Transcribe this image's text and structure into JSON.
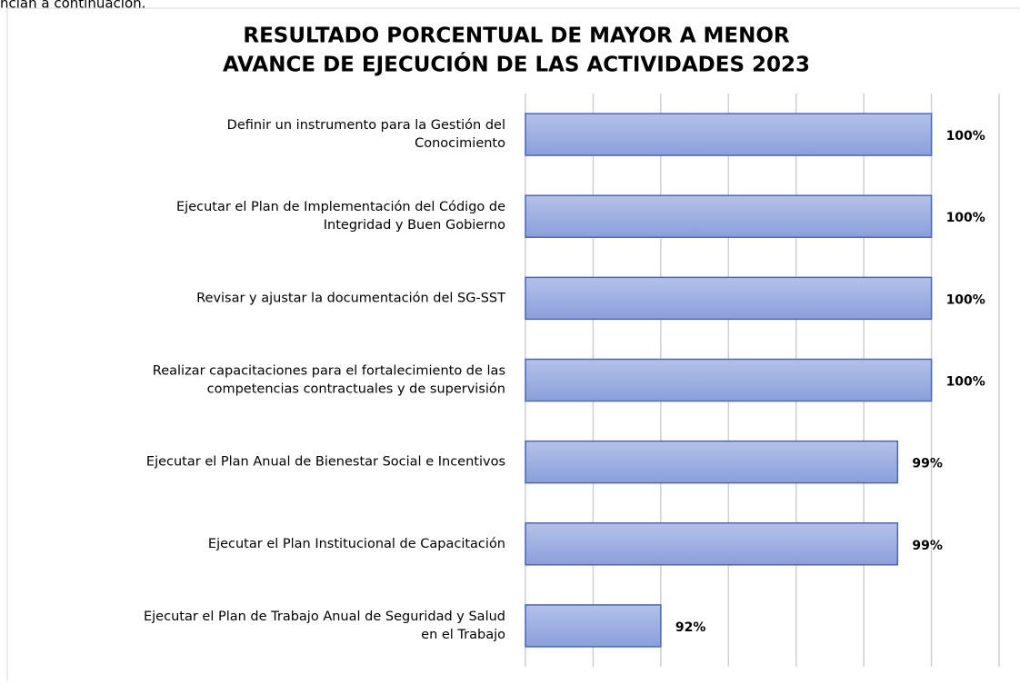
{
  "page_text": "ncian a continuación.",
  "chart_data": {
    "type": "barh",
    "title": [
      "RESULTADO PORCENTUAL DE MAYOR A MENOR",
      "AVANCE DE EJECUCIÓN DE LAS ACTIVIDADES 2023"
    ],
    "categories": [
      "Definir un instrumento para la Gestión del\nConocimiento",
      "Ejecutar el Plan de Implementación del Código de\nIntegridad y Buen Gobierno",
      "Revisar y ajustar la documentación del SG-SST",
      "Realizar capacitaciones para el fortalecimiento de las\ncompetencias contractuales y de supervisión",
      "Ejecutar el Plan Anual de Bienestar Social e Incentivos",
      "Ejecutar el Plan Institucional de Capacitación",
      "Ejecutar el Plan de Trabajo Anual de Seguridad y Salud\nen el Trabajo"
    ],
    "values": [
      100,
      100,
      100,
      100,
      99,
      99,
      92
    ],
    "value_labels": [
      "100%",
      "100%",
      "100%",
      "100%",
      "99%",
      "99%",
      "92%"
    ],
    "color": "#9aace0",
    "xlim": [
      88,
      102
    ],
    "xticks": [
      88,
      90,
      92,
      94,
      96,
      98,
      100,
      102
    ],
    "grid": true
  }
}
